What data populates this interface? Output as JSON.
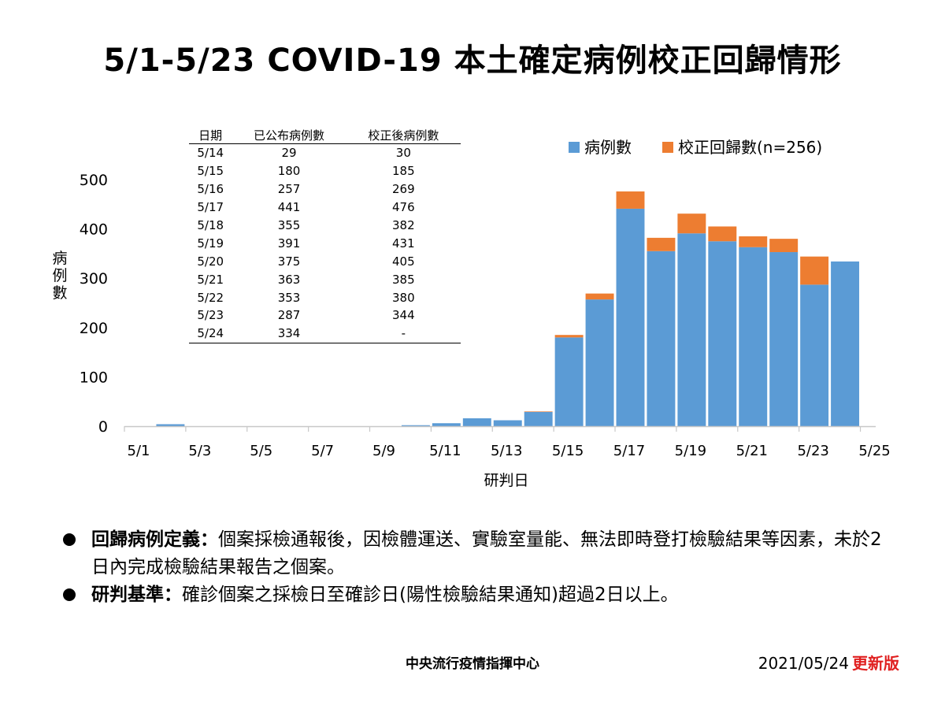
{
  "title": "5/1-5/23 COVID-19 本土確定病例校正回歸情形",
  "chart_data": {
    "type": "bar",
    "stacked": true,
    "categories": [
      "5/1",
      "5/2",
      "5/3",
      "5/4",
      "5/5",
      "5/6",
      "5/7",
      "5/8",
      "5/9",
      "5/10",
      "5/11",
      "5/12",
      "5/13",
      "5/14",
      "5/15",
      "5/16",
      "5/17",
      "5/18",
      "5/19",
      "5/20",
      "5/21",
      "5/22",
      "5/23",
      "5/24"
    ],
    "x_tick_labels": [
      "5/1",
      "5/3",
      "5/5",
      "5/7",
      "5/9",
      "5/11",
      "5/13",
      "5/15",
      "5/17",
      "5/19",
      "5/21",
      "5/23",
      "5/25"
    ],
    "series": [
      {
        "name": "病例數",
        "color": "#5b9bd5",
        "values": [
          0,
          4,
          0,
          0,
          0,
          0,
          0,
          0,
          0,
          2,
          6,
          16,
          12,
          29,
          180,
          257,
          441,
          355,
          391,
          375,
          363,
          353,
          287,
          334
        ]
      },
      {
        "name": "校正回歸數(n=256)",
        "color": "#ed7d31",
        "values": [
          0,
          0,
          0,
          0,
          0,
          0,
          0,
          0,
          0,
          0,
          0,
          0,
          0,
          1,
          5,
          12,
          35,
          27,
          40,
          30,
          22,
          27,
          57,
          0
        ]
      }
    ],
    "ylim": [
      0,
      500
    ],
    "y_ticks": [
      0,
      100,
      200,
      300,
      400,
      500
    ],
    "ylabel": "病例數",
    "xlabel": "研判日",
    "legend": "top-right",
    "grid": false
  },
  "table": {
    "headers": [
      "日期",
      "已公布病例數",
      "校正後病例數"
    ],
    "rows": [
      [
        "5/14",
        "29",
        "30"
      ],
      [
        "5/15",
        "180",
        "185"
      ],
      [
        "5/16",
        "257",
        "269"
      ],
      [
        "5/17",
        "441",
        "476"
      ],
      [
        "5/18",
        "355",
        "382"
      ],
      [
        "5/19",
        "391",
        "431"
      ],
      [
        "5/20",
        "375",
        "405"
      ],
      [
        "5/21",
        "363",
        "385"
      ],
      [
        "5/22",
        "353",
        "380"
      ],
      [
        "5/23",
        "287",
        "344"
      ],
      [
        "5/24",
        "334",
        "-"
      ]
    ]
  },
  "notes": [
    {
      "label": "回歸病例定義：",
      "text": "個案採檢通報後，因檢體運送、實驗室量能、無法即時登打檢驗結果等因素，未於2日內完成檢驗結果報告之個案。"
    },
    {
      "label": "研判基準：",
      "text": "確診個案之採檢日至確診日(陽性檢驗結果通知)超過2日以上。"
    }
  ],
  "footer": {
    "org": "中央流行疫情指揮中心",
    "date": "2021/05/24",
    "updated": "更新版"
  }
}
